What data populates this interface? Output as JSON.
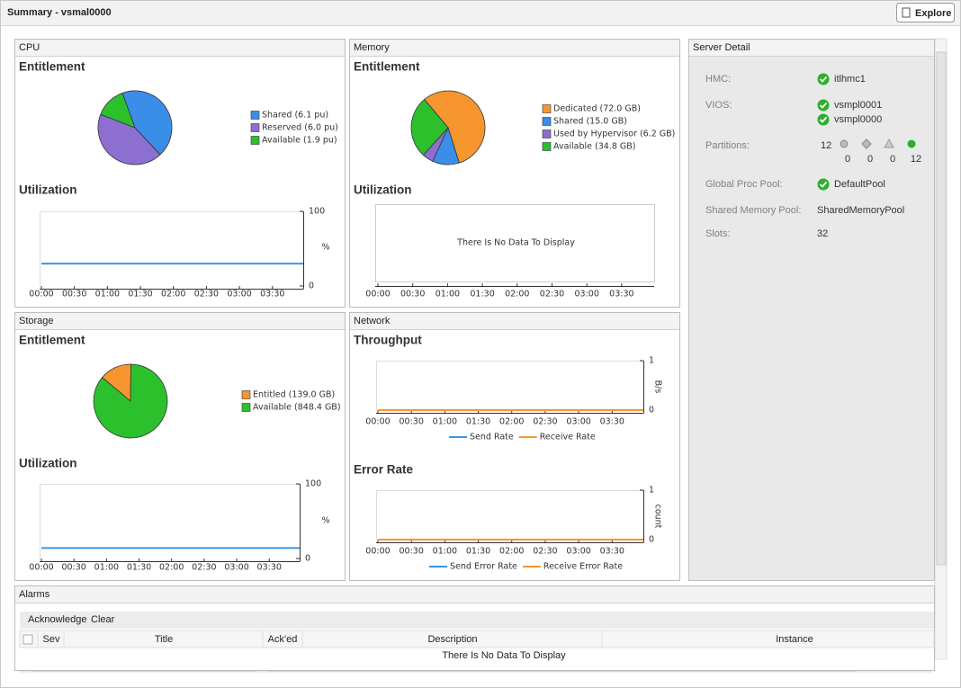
{
  "header": {
    "title": "Summary -  vsmal0000",
    "explore": "Explore"
  },
  "cpu": {
    "panel": "CPU",
    "entitlement": {
      "heading": "Entitlement",
      "type": "pie",
      "labels": [
        "Shared (6.1 pu)",
        "Reserved (6.0 pu)",
        "Available (1.9 pu)"
      ],
      "values": [
        6.1,
        6.0,
        1.9
      ],
      "colors": [
        "#3b8ee8",
        "#8c6fd1",
        "#2cc12c"
      ]
    },
    "utilization": {
      "heading": "Utilization",
      "type": "line",
      "xlim": [
        0,
        238
      ],
      "xticks": [
        {
          "value": 0,
          "label": "00:00"
        },
        {
          "value": 30,
          "label": "00:30"
        },
        {
          "value": 60,
          "label": "01:00"
        },
        {
          "value": 90,
          "label": "01:30"
        },
        {
          "value": 120,
          "label": "02:00"
        },
        {
          "value": 150,
          "label": "02:30"
        },
        {
          "value": 180,
          "label": "03:00"
        },
        {
          "value": 210,
          "label": "03:30"
        }
      ],
      "ylim": [
        0,
        100
      ],
      "yticks": [
        0,
        100
      ],
      "ylabel": "%",
      "series": [
        {
          "color": "#3b94e8",
          "x": [
            0,
            238
          ],
          "values": [
            30,
            30
          ]
        }
      ]
    }
  },
  "memory": {
    "panel": "Memory",
    "entitlement": {
      "heading": "Entitlement",
      "type": "pie",
      "labels": [
        "Dedicated (72.0 GB)",
        "Shared (15.0 GB)",
        "Used by Hypervisor (6.2 GB)",
        "Available (34.8 GB)"
      ],
      "values": [
        72.0,
        15.0,
        6.2,
        34.8
      ],
      "colors": [
        "#f7962f",
        "#3b8ee8",
        "#8c6fd1",
        "#2cc12c"
      ]
    },
    "utilization": {
      "heading": "Utilization",
      "type": "line",
      "xlim": [
        0,
        238
      ],
      "xticks": [
        {
          "value": 0,
          "label": "00:00"
        },
        {
          "value": 30,
          "label": "00:30"
        },
        {
          "value": 60,
          "label": "01:00"
        },
        {
          "value": 90,
          "label": "01:30"
        },
        {
          "value": 120,
          "label": "02:00"
        },
        {
          "value": 150,
          "label": "02:30"
        },
        {
          "value": 180,
          "label": "03:00"
        },
        {
          "value": 210,
          "label": "03:30"
        }
      ],
      "message": "There Is No Data To Display"
    }
  },
  "storage": {
    "panel": "Storage",
    "entitlement": {
      "heading": "Entitlement",
      "type": "pie",
      "labels": [
        "Entitled (139.0 GB)",
        "Available (848.4 GB)"
      ],
      "values": [
        139.0,
        848.4
      ],
      "colors": [
        "#f7962f",
        "#2cc12c"
      ]
    },
    "utilization": {
      "heading": "Utilization",
      "type": "line",
      "xlim": [
        0,
        238
      ],
      "xticks": [
        {
          "value": 0,
          "label": "00:00"
        },
        {
          "value": 30,
          "label": "00:30"
        },
        {
          "value": 60,
          "label": "01:00"
        },
        {
          "value": 90,
          "label": "01:30"
        },
        {
          "value": 120,
          "label": "02:00"
        },
        {
          "value": 150,
          "label": "02:30"
        },
        {
          "value": 180,
          "label": "03:00"
        },
        {
          "value": 210,
          "label": "03:30"
        }
      ],
      "ylim": [
        0,
        100
      ],
      "yticks": [
        0,
        100
      ],
      "ylabel": "%",
      "series": [
        {
          "color": "#3b94e8",
          "x": [
            0,
            238
          ],
          "values": [
            14,
            14
          ]
        }
      ]
    }
  },
  "network": {
    "panel": "Network",
    "throughput": {
      "heading": "Throughput",
      "type": "line",
      "xlim": [
        0,
        238
      ],
      "xticks": [
        {
          "value": 0,
          "label": "00:00"
        },
        {
          "value": 30,
          "label": "00:30"
        },
        {
          "value": 60,
          "label": "01:00"
        },
        {
          "value": 90,
          "label": "01:30"
        },
        {
          "value": 120,
          "label": "02:00"
        },
        {
          "value": 150,
          "label": "02:30"
        },
        {
          "value": 180,
          "label": "03:00"
        },
        {
          "value": 210,
          "label": "03:30"
        }
      ],
      "ylim": [
        0,
        1
      ],
      "yticks": [
        0,
        1
      ],
      "ylabel": "B/s",
      "series": [
        {
          "name": "Send Rate",
          "color": "#3b94e8",
          "x": [
            0,
            238
          ],
          "values": [
            0,
            0
          ]
        },
        {
          "name": "Receive Rate",
          "color": "#f7962f",
          "x": [
            0,
            238
          ],
          "values": [
            0,
            0
          ]
        }
      ]
    },
    "error_rate": {
      "heading": "Error Rate",
      "type": "line",
      "xlim": [
        0,
        238
      ],
      "xticks": [
        {
          "value": 0,
          "label": "00:00"
        },
        {
          "value": 30,
          "label": "00:30"
        },
        {
          "value": 60,
          "label": "01:00"
        },
        {
          "value": 90,
          "label": "01:30"
        },
        {
          "value": 120,
          "label": "02:00"
        },
        {
          "value": 150,
          "label": "02:30"
        },
        {
          "value": 180,
          "label": "03:00"
        },
        {
          "value": 210,
          "label": "03:30"
        }
      ],
      "ylim": [
        0,
        1
      ],
      "yticks": [
        0,
        1
      ],
      "ylabel": "count",
      "series": [
        {
          "name": "Send Error Rate",
          "color": "#3b94e8",
          "x": [
            0,
            238
          ],
          "values": [
            0,
            0
          ]
        },
        {
          "name": "Receive Error Rate",
          "color": "#f7962f",
          "x": [
            0,
            238
          ],
          "values": [
            0,
            0
          ]
        }
      ]
    }
  },
  "server_detail": {
    "panel": "Server Detail",
    "hmc": {
      "label": "HMC:",
      "values": [
        "itlhmc1"
      ]
    },
    "vios": {
      "label": "VIOS:",
      "values": [
        "vsmpl0001",
        "vsmpl0000"
      ]
    },
    "partitions": {
      "label": "Partitions:",
      "total": 12,
      "counts": [
        0,
        0,
        0,
        12
      ]
    },
    "global_proc_pool": {
      "label": "Global Proc Pool:",
      "values": [
        "DefaultPool"
      ]
    },
    "shared_memory_pool": {
      "label": "Shared Memory Pool:",
      "values": [
        "SharedMemoryPool"
      ]
    },
    "slots": {
      "label": "Slots:",
      "values": [
        "32"
      ]
    }
  },
  "alarms": {
    "panel": "Alarms",
    "toolbar": [
      "Acknowledge",
      "Clear"
    ],
    "columns": [
      "Sev",
      "Title",
      "Ack'ed",
      "Description",
      "Instance"
    ],
    "empty": "There Is No Data To Display"
  }
}
